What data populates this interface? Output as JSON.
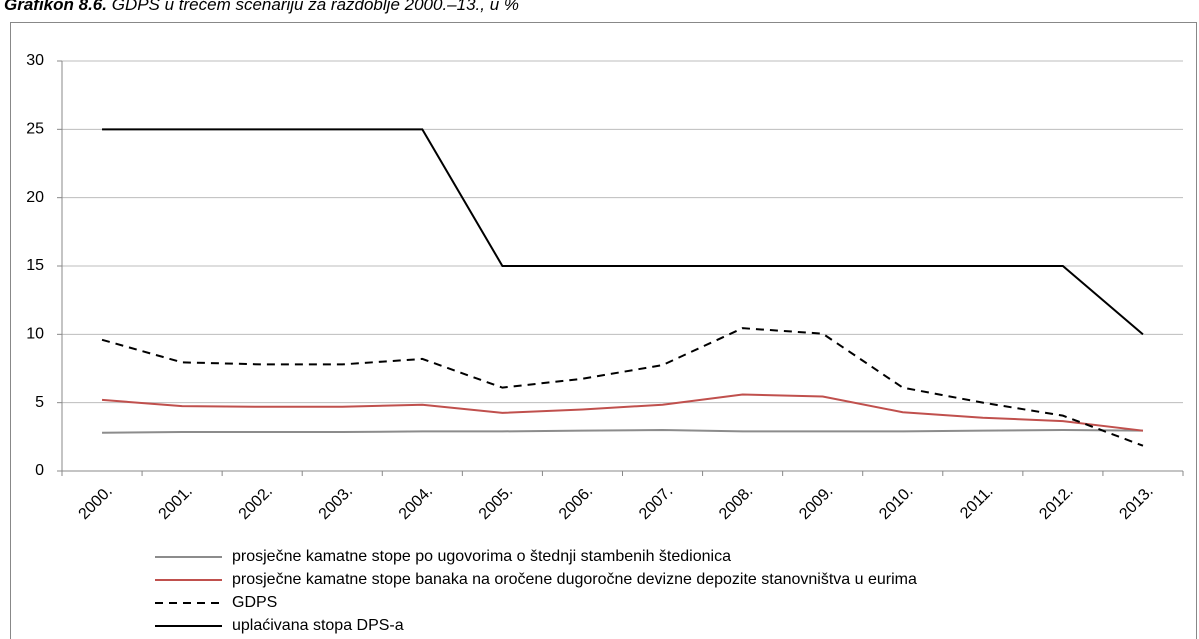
{
  "chart_data": {
    "type": "line",
    "title_label": "Grafikon 8.6.",
    "title": "GDPS u trećem scenariju za razdoblje 2000.–13., u %",
    "categories": [
      "2000.",
      "2001.",
      "2002.",
      "2003.",
      "2004.",
      "2005.",
      "2006.",
      "2007.",
      "2008.",
      "2009.",
      "2010.",
      "2011.",
      "2012.",
      "2013."
    ],
    "series": [
      {
        "name": "prosječne kamatne stope po ugovorima o štednji stambenih štedionica",
        "color": "#8c8c8c",
        "dash": false,
        "values": [
          2.8,
          2.85,
          2.85,
          2.85,
          2.9,
          2.9,
          2.95,
          3.0,
          2.9,
          2.9,
          2.9,
          2.95,
          3.0,
          2.95
        ]
      },
      {
        "name": "prosječne kamatne stope banaka na oročene dugoročne devizne depozite stanovništva u eurima",
        "color": "#c0504d",
        "dash": false,
        "values": [
          5.2,
          4.75,
          4.7,
          4.7,
          4.85,
          4.25,
          4.5,
          4.85,
          5.6,
          5.45,
          4.3,
          3.9,
          3.65,
          2.95
        ]
      },
      {
        "name": "GDPS",
        "color": "#000000",
        "dash": true,
        "values": [
          9.6,
          7.95,
          7.8,
          7.8,
          8.2,
          6.1,
          6.75,
          7.75,
          10.45,
          10.05,
          6.1,
          5.0,
          4.05,
          1.85
        ]
      },
      {
        "name": "uplaćivana stopa DPS-a",
        "color": "#000000",
        "dash": false,
        "values": [
          25,
          25,
          25,
          25,
          25,
          15,
          15,
          15,
          15,
          15,
          15,
          15,
          15,
          10
        ]
      }
    ],
    "ylim": [
      0,
      30
    ],
    "yticks": [
      0,
      5,
      10,
      15,
      20,
      25,
      30
    ],
    "grid": true,
    "legend": "bottom"
  }
}
